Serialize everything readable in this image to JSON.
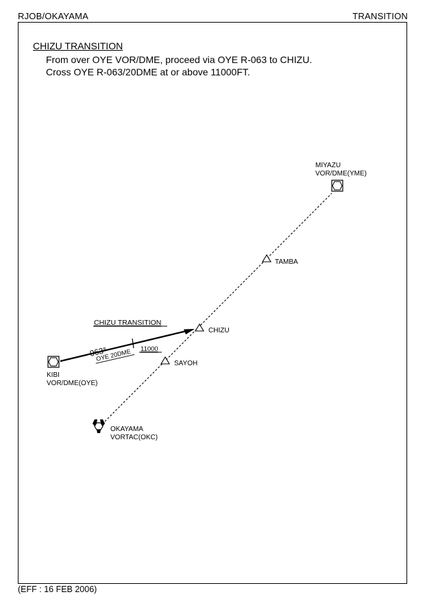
{
  "header": {
    "left": "RJOB/OKAYAMA",
    "right": "TRANSITION"
  },
  "procedure": {
    "title": "CHIZU TRANSITION",
    "line1": "From over OYE VOR/DME, proceed via OYE R-063 to CHIZU.",
    "line2": "Cross OYE R-063/20DME at or above 11000FT."
  },
  "chart": {
    "route_label": "CHIZU TRANSITION",
    "course": "063°",
    "fix_label": "OYE 20DME",
    "altitude": "11000",
    "navaids": {
      "miyazu": {
        "name": "MIYAZU",
        "type": "VOR/DME(YME)"
      },
      "kibi": {
        "name": "KIBI",
        "type": "VOR/DME(OYE)"
      },
      "okayama": {
        "name": "OKAYAMA",
        "type": "VORTAC(OKC)"
      }
    },
    "waypoints": {
      "tamba": "TAMBA",
      "chizu": "CHIZU",
      "sayoh": "SAYOH"
    }
  },
  "footer": {
    "effective": "(EFF : 16 FEB 2006)"
  }
}
